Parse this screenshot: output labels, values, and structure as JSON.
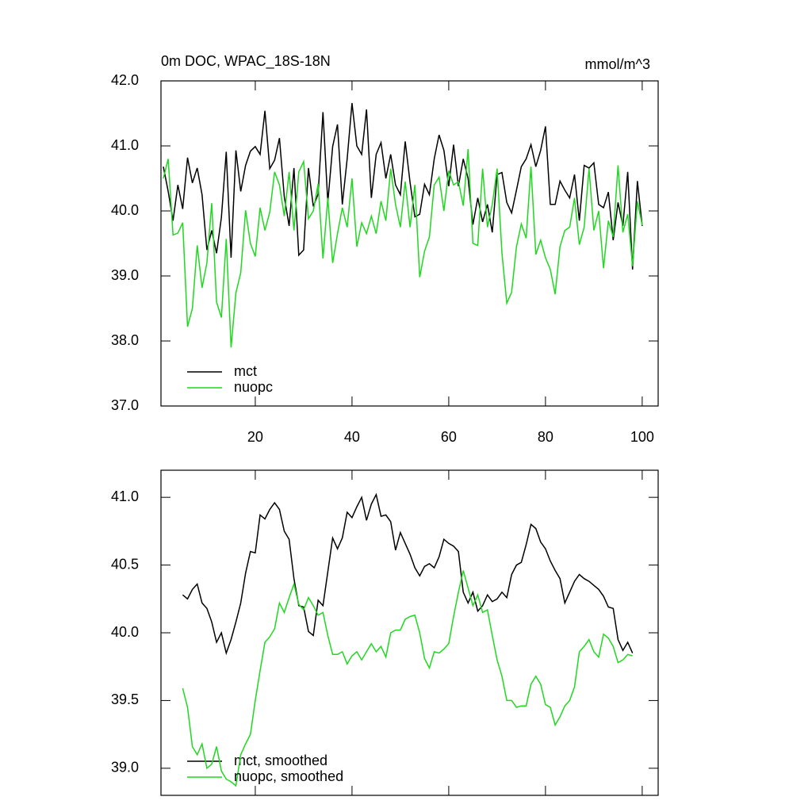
{
  "chart_data": [
    {
      "type": "line",
      "title": "0m DOC, WPAC_18S-18N",
      "units": "mmol/m^3",
      "x": [
        1,
        2,
        3,
        4,
        5,
        6,
        7,
        8,
        9,
        10,
        11,
        12,
        13,
        14,
        15,
        16,
        17,
        18,
        19,
        20,
        21,
        22,
        23,
        24,
        25,
        26,
        27,
        28,
        29,
        30,
        31,
        32,
        33,
        34,
        35,
        36,
        37,
        38,
        39,
        40,
        41,
        42,
        43,
        44,
        45,
        46,
        47,
        48,
        49,
        50,
        51,
        52,
        53,
        54,
        55,
        56,
        57,
        58,
        59,
        60,
        61,
        62,
        63,
        64,
        65,
        66,
        67,
        68,
        69,
        70,
        71,
        72,
        73,
        74,
        75,
        76,
        77,
        78,
        79,
        80,
        81,
        82,
        83,
        84,
        85,
        86,
        87,
        88,
        89,
        90,
        91,
        92,
        93,
        94,
        95,
        96,
        97,
        98,
        99,
        100
      ],
      "series": [
        {
          "name": "mct",
          "color": "#000000",
          "values": [
            40.68,
            40.3,
            39.85,
            40.4,
            40.03,
            40.82,
            40.43,
            40.66,
            40.25,
            39.4,
            39.7,
            39.35,
            39.9,
            40.91,
            39.28,
            40.93,
            40.3,
            40.7,
            40.92,
            40.99,
            40.87,
            41.54,
            40.65,
            40.78,
            41.12,
            40.22,
            39.77,
            40.66,
            39.32,
            39.4,
            40.66,
            40.07,
            40.26,
            41.52,
            40.13,
            40.99,
            41.33,
            40.1,
            40.8,
            41.66,
            41.0,
            40.87,
            41.56,
            40.2,
            40.87,
            41.05,
            40.5,
            40.87,
            40.4,
            40.25,
            41.07,
            40.44,
            39.91,
            39.95,
            40.41,
            40.25,
            40.8,
            41.17,
            40.93,
            40.38,
            41.02,
            40.38,
            40.8,
            40.5,
            39.79,
            40.2,
            39.83,
            40.1,
            39.67,
            40.56,
            40.59,
            40.13,
            39.97,
            40.32,
            40.68,
            40.8,
            41.02,
            40.68,
            40.93,
            41.3,
            40.1,
            40.1,
            40.46,
            40.32,
            40.2,
            40.56,
            39.85,
            40.7,
            40.66,
            40.74,
            40.1,
            40.05,
            40.29,
            39.55,
            40.13,
            39.77,
            40.6,
            39.1,
            40.46,
            39.77
          ]
        },
        {
          "name": "nuopc",
          "color": "#1fd81f",
          "values": [
            40.5,
            40.8,
            39.63,
            39.66,
            39.82,
            38.22,
            38.5,
            39.47,
            38.82,
            39.2,
            40.12,
            38.6,
            38.36,
            39.57,
            37.9,
            38.74,
            39.05,
            40.01,
            39.5,
            39.3,
            40.05,
            39.7,
            39.98,
            40.6,
            40.4,
            39.92,
            40.6,
            39.7,
            40.6,
            40.76,
            39.88,
            40.0,
            40.42,
            39.27,
            40.2,
            39.2,
            39.65,
            40.05,
            39.75,
            40.5,
            39.45,
            39.82,
            39.65,
            39.92,
            39.65,
            40.15,
            39.85,
            40.65,
            40.1,
            39.75,
            40.45,
            39.75,
            40.4,
            38.98,
            39.38,
            39.6,
            40.4,
            40.52,
            40.0,
            40.62,
            40.4,
            40.45,
            40.08,
            40.95,
            39.5,
            39.47,
            40.65,
            39.75,
            40.1,
            40.65,
            39.35,
            38.58,
            38.75,
            39.45,
            39.8,
            39.58,
            40.68,
            39.33,
            39.55,
            39.28,
            39.1,
            38.72,
            39.45,
            39.7,
            39.75,
            40.2,
            39.48,
            39.75,
            40.65,
            39.7,
            40.0,
            39.12,
            39.85,
            39.6,
            40.7,
            39.67,
            39.95,
            39.15,
            40.15,
            39.78
          ]
        }
      ],
      "xlim": [
        0.5,
        103.3
      ],
      "xticks": [
        20,
        40,
        60,
        80,
        100
      ],
      "ylim": [
        37,
        42
      ],
      "yticks": [
        {
          "value": 37,
          "label": "37.0"
        },
        {
          "value": 38,
          "label": "38.0"
        },
        {
          "value": 39,
          "label": "39.0"
        },
        {
          "value": 40,
          "label": "40.0"
        },
        {
          "value": 41,
          "label": "41.0"
        },
        {
          "value": 42,
          "label": "42.0"
        }
      ],
      "legend": "lower left"
    },
    {
      "type": "line",
      "x": [
        5,
        6,
        7,
        8,
        9,
        10,
        11,
        12,
        13,
        14,
        15,
        16,
        17,
        18,
        19,
        20,
        21,
        22,
        23,
        24,
        25,
        26,
        27,
        28,
        29,
        30,
        31,
        32,
        33,
        34,
        35,
        36,
        37,
        38,
        39,
        40,
        41,
        42,
        43,
        44,
        45,
        46,
        47,
        48,
        49,
        50,
        51,
        52,
        53,
        54,
        55,
        56,
        57,
        58,
        59,
        60,
        61,
        62,
        63,
        64,
        65,
        66,
        67,
        68,
        69,
        70,
        71,
        72,
        73,
        74,
        75,
        76,
        77,
        78,
        79,
        80,
        81,
        82,
        83,
        84,
        85,
        86,
        87,
        88,
        89,
        90,
        91,
        92,
        93,
        94,
        95,
        96,
        97,
        98
      ],
      "series": [
        {
          "name": "mct, smoothed",
          "color": "#000000",
          "values": [
            40.28,
            40.25,
            40.32,
            40.36,
            40.22,
            40.18,
            40.08,
            39.93,
            40.0,
            39.85,
            39.95,
            40.08,
            40.22,
            40.44,
            40.6,
            40.59,
            40.87,
            40.84,
            40.91,
            40.96,
            40.91,
            40.75,
            40.69,
            40.4,
            40.2,
            40.19,
            40.01,
            39.98,
            40.24,
            40.2,
            40.45,
            40.7,
            40.62,
            40.7,
            40.89,
            40.85,
            40.93,
            41.0,
            40.83,
            40.95,
            41.02,
            40.86,
            40.87,
            40.82,
            40.61,
            40.74,
            40.66,
            40.58,
            40.48,
            40.42,
            40.49,
            40.51,
            40.48,
            40.56,
            40.69,
            40.66,
            40.64,
            40.6,
            40.3,
            40.22,
            40.3,
            40.16,
            40.2,
            40.28,
            40.23,
            40.25,
            40.3,
            40.26,
            40.43,
            40.5,
            40.52,
            40.65,
            40.8,
            40.77,
            40.67,
            40.62,
            40.53,
            40.46,
            40.4,
            40.22,
            40.3,
            40.38,
            40.43,
            40.4,
            40.38,
            40.35,
            40.32,
            40.27,
            40.19,
            40.18,
            39.95,
            39.87,
            39.93,
            39.85
          ]
        },
        {
          "name": "nuopc, smoothed",
          "color": "#1fd81f",
          "values": [
            39.59,
            39.45,
            39.16,
            39.1,
            39.18,
            39.0,
            39.03,
            39.16,
            38.98,
            38.92,
            38.9,
            38.87,
            39.1,
            39.18,
            39.25,
            39.5,
            39.72,
            39.93,
            39.97,
            40.03,
            40.22,
            40.15,
            40.26,
            40.36,
            40.21,
            40.17,
            40.26,
            40.2,
            40.13,
            40.15,
            39.98,
            39.84,
            39.84,
            39.86,
            39.77,
            39.83,
            39.86,
            39.8,
            39.86,
            39.92,
            39.86,
            39.9,
            39.82,
            40.0,
            40.02,
            40.02,
            40.1,
            40.12,
            40.13,
            40.0,
            39.81,
            39.74,
            39.86,
            39.85,
            39.88,
            39.92,
            40.12,
            40.3,
            40.46,
            40.33,
            40.2,
            40.28,
            40.15,
            40.17,
            39.98,
            39.8,
            39.68,
            39.5,
            39.5,
            39.45,
            39.46,
            39.46,
            39.62,
            39.68,
            39.62,
            39.47,
            39.45,
            39.32,
            39.38,
            39.46,
            39.5,
            39.6,
            39.86,
            39.9,
            39.95,
            39.86,
            39.82,
            39.99,
            39.96,
            39.9,
            39.78,
            39.8,
            39.84,
            39.83
          ]
        }
      ],
      "xlim": [
        0.5,
        103.3
      ],
      "xticks": [
        20,
        40,
        60,
        80,
        100
      ],
      "ylim": [
        38.8,
        41.2
      ],
      "yticks": [
        {
          "value": 39,
          "label": "39.0"
        },
        {
          "value": 39.5,
          "label": "39.5"
        },
        {
          "value": 40,
          "label": "40.0"
        },
        {
          "value": 40.5,
          "label": "40.5"
        },
        {
          "value": 41,
          "label": "41.0"
        }
      ],
      "legend": "lower left"
    }
  ]
}
